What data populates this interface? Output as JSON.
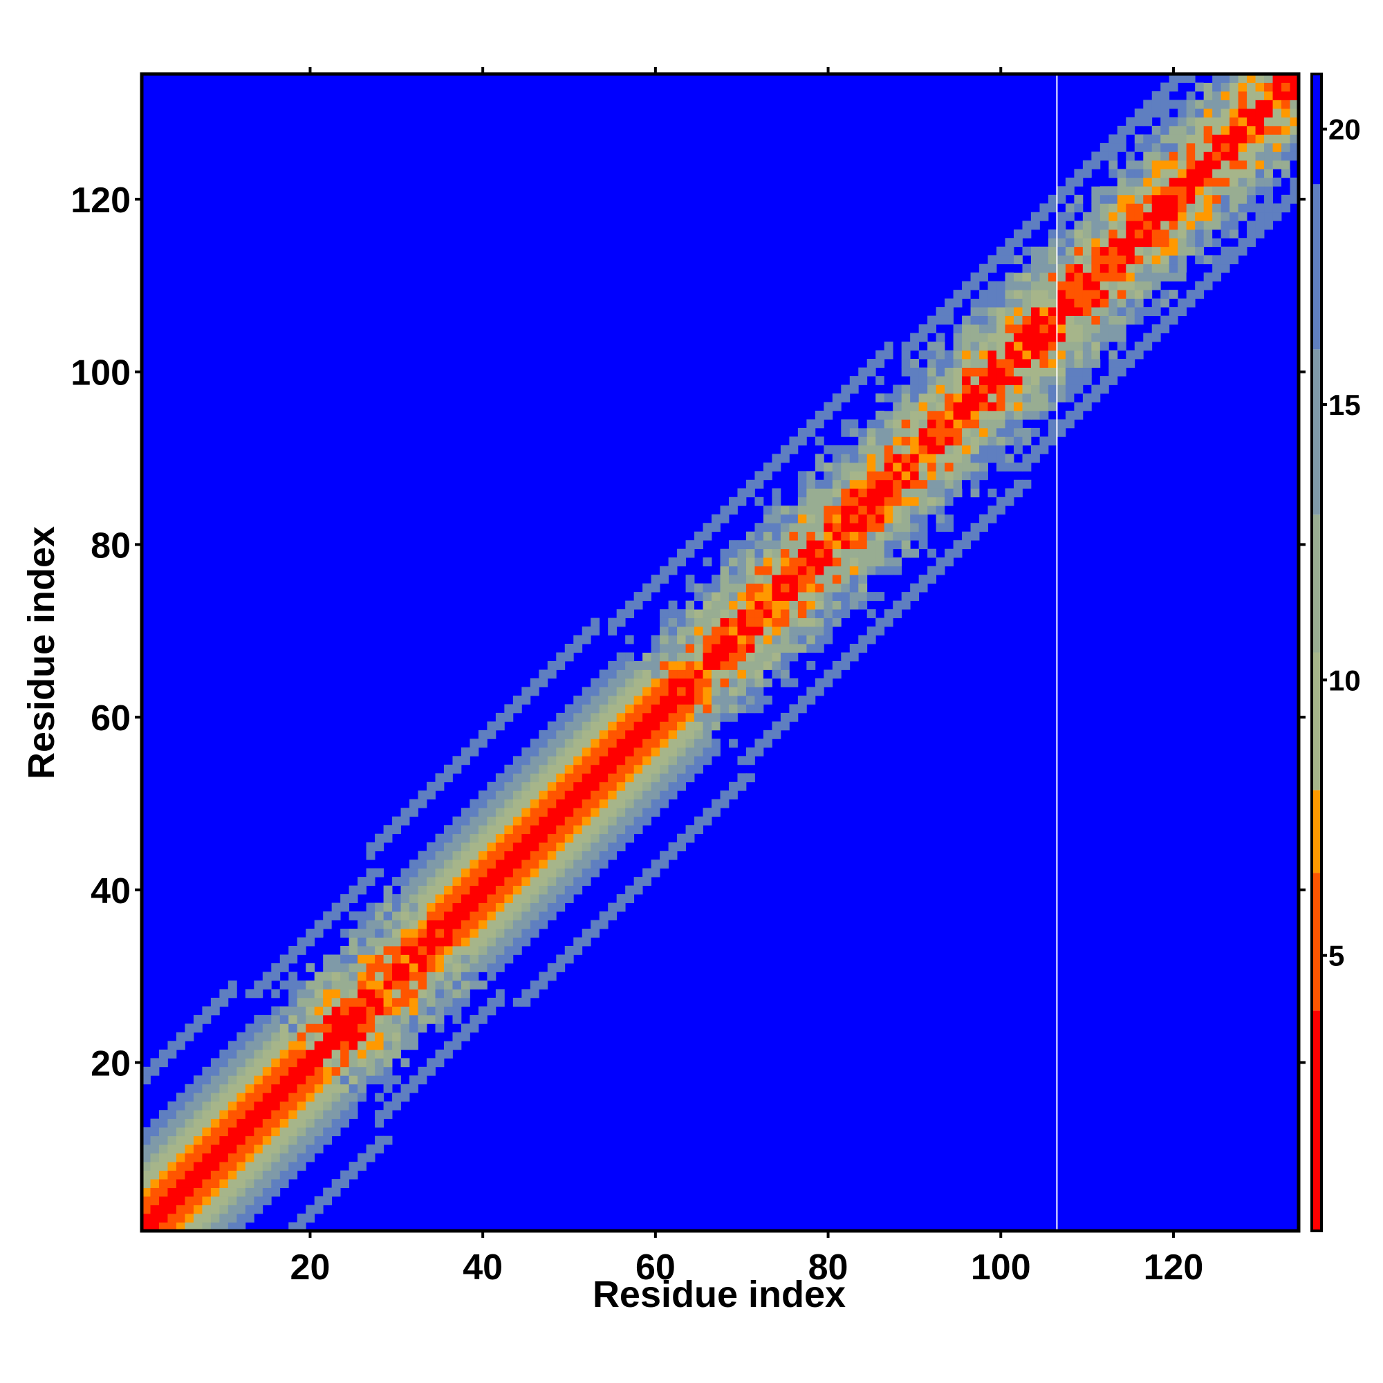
{
  "chart_data": {
    "type": "heatmap",
    "title": "",
    "xlabel": "Residue index",
    "ylabel": "Residue index",
    "xlim": [
      1,
      134
    ],
    "ylim": [
      1,
      134
    ],
    "n_residues": 134,
    "gap_column": 107,
    "xticks": [
      20,
      40,
      60,
      80,
      100,
      120
    ],
    "yticks": [
      20,
      40,
      60,
      80,
      100,
      120
    ],
    "x_tick_labels": [
      "20",
      "40",
      "60",
      "80",
      "100",
      "120"
    ],
    "y_tick_labels": [
      "20",
      "40",
      "60",
      "80",
      "100",
      "120"
    ],
    "colorbar": {
      "range": [
        0,
        21
      ],
      "ticks": [
        5,
        10,
        15,
        20
      ],
      "tick_labels": [
        "5",
        "10",
        "15",
        "20"
      ],
      "colors": [
        {
          "from": 0,
          "to": 4,
          "color": "#ff0000"
        },
        {
          "from": 4,
          "to": 6.5,
          "color": "#ff5500"
        },
        {
          "from": 6.5,
          "to": 8,
          "color": "#ff9900"
        },
        {
          "from": 8,
          "to": 10.5,
          "color": "#a6b58a"
        },
        {
          "from": 10.5,
          "to": 13,
          "color": "#98ad92"
        },
        {
          "from": 13,
          "to": 16,
          "color": "#7f9aa8"
        },
        {
          "from": 16,
          "to": 19,
          "color": "#5f7fc0"
        },
        {
          "from": 19,
          "to": 21,
          "color": "#0000ff"
        }
      ]
    },
    "band_profile": [
      {
        "residues": [
          1,
          20
        ],
        "half_width_max": 16,
        "rough": false
      },
      {
        "residues": [
          20,
          35
        ],
        "half_width_max": 13,
        "rough": true
      },
      {
        "residues": [
          35,
          62
        ],
        "half_width_max": 16,
        "rough": false
      },
      {
        "residues": [
          62,
          95
        ],
        "half_width_max": 14,
        "rough": true
      },
      {
        "residues": [
          95,
          134
        ],
        "half_width_max": 12,
        "rough": true
      }
    ],
    "background_value": 21,
    "colors": {
      "background": "#0000ff",
      "frame": "#000000",
      "gap_line": "#ffffff"
    }
  }
}
